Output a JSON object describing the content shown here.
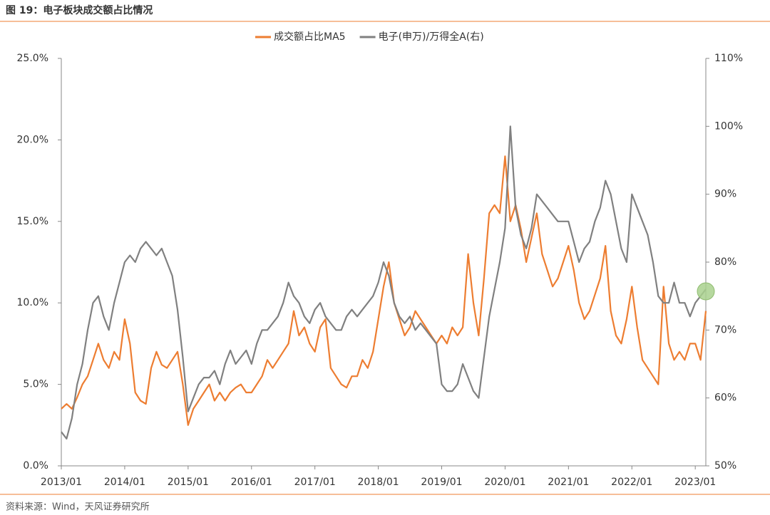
{
  "chart_data": {
    "type": "line",
    "title": "图 19：电子板块成交额占比情况",
    "source": "资料来源：Wind，天风证券研究所",
    "categories": [
      "2013/01",
      null,
      null,
      null,
      null,
      null,
      null,
      null,
      null,
      null,
      null,
      null,
      "2014/01",
      null,
      null,
      null,
      null,
      null,
      null,
      null,
      null,
      null,
      null,
      null,
      "2015/01",
      null,
      null,
      null,
      null,
      null,
      null,
      null,
      null,
      null,
      null,
      null,
      "2016/01",
      null,
      null,
      null,
      null,
      null,
      null,
      null,
      null,
      null,
      null,
      null,
      "2017/01",
      null,
      null,
      null,
      null,
      null,
      null,
      null,
      null,
      null,
      null,
      null,
      "2018/01",
      null,
      null,
      null,
      null,
      null,
      null,
      null,
      null,
      null,
      null,
      null,
      "2019/01",
      null,
      null,
      null,
      null,
      null,
      null,
      null,
      null,
      null,
      null,
      null,
      "2020/01",
      null,
      null,
      null,
      null,
      null,
      null,
      null,
      null,
      null,
      null,
      null,
      "2021/01",
      null,
      null,
      null,
      null,
      null,
      null,
      null,
      null,
      null,
      null,
      null,
      "2022/01",
      null,
      null,
      null,
      null,
      null,
      null,
      null,
      null,
      null,
      null,
      null,
      "2023/01",
      null,
      null
    ],
    "series": [
      {
        "name": "成交额占比MA5",
        "color": "#ed7d31",
        "axis": "y",
        "values": [
          3.5,
          3.8,
          3.5,
          4.2,
          5.0,
          5.5,
          6.5,
          7.5,
          6.5,
          6.0,
          7.0,
          6.5,
          9.0,
          7.5,
          4.5,
          4.0,
          3.8,
          6.0,
          7.0,
          6.2,
          6.0,
          6.5,
          7.0,
          5.0,
          2.5,
          3.5,
          4.0,
          4.5,
          5.0,
          4.0,
          4.5,
          4.0,
          4.5,
          4.8,
          5.0,
          4.5,
          4.5,
          5.0,
          5.5,
          6.5,
          6.0,
          6.5,
          7.0,
          7.5,
          9.5,
          8.0,
          8.5,
          7.5,
          7.0,
          8.5,
          9.0,
          6.0,
          5.5,
          5.0,
          4.8,
          5.5,
          5.5,
          6.5,
          6.0,
          7.0,
          9.0,
          11.0,
          12.5,
          10.0,
          9.0,
          8.0,
          8.5,
          9.5,
          9.0,
          8.5,
          8.0,
          7.5,
          8.0,
          7.5,
          8.5,
          8.0,
          8.5,
          13.0,
          10.0,
          8.0,
          11.5,
          15.5,
          16.0,
          15.5,
          19.0,
          15.0,
          16.0,
          14.5,
          12.5,
          14.0,
          15.5,
          13.0,
          12.0,
          11.0,
          11.5,
          12.5,
          13.5,
          12.0,
          10.0,
          9.0,
          9.5,
          10.5,
          11.5,
          13.5,
          9.5,
          8.0,
          7.5,
          9.0,
          11.0,
          8.5,
          6.5,
          6.0,
          5.5,
          5.0,
          11.0,
          7.5,
          6.5,
          7.0,
          6.5,
          7.5,
          7.5,
          6.5,
          9.5
        ]
      },
      {
        "name": "电子(申万)/万得全A(右)",
        "color": "#808080",
        "axis": "y2",
        "values": [
          55,
          54,
          57,
          62,
          65,
          70,
          74,
          75,
          72,
          70,
          74,
          77,
          80,
          81,
          80,
          82,
          83,
          82,
          81,
          82,
          80,
          78,
          73,
          66,
          58,
          60,
          62,
          63,
          63,
          64,
          62,
          65,
          67,
          65,
          66,
          67,
          65,
          68,
          70,
          70,
          71,
          72,
          74,
          77,
          75,
          74,
          72,
          71,
          73,
          74,
          72,
          71,
          70,
          70,
          72,
          73,
          72,
          73,
          74,
          75,
          77,
          80,
          78,
          74,
          72,
          71,
          72,
          70,
          71,
          70,
          69,
          68,
          62,
          61,
          61,
          62,
          65,
          63,
          61,
          60,
          66,
          72,
          76,
          80,
          85,
          100,
          88,
          84,
          82,
          85,
          90,
          89,
          88,
          87,
          86,
          86,
          86,
          83,
          80,
          82,
          83,
          86,
          88,
          92,
          90,
          86,
          82,
          80,
          90,
          88,
          86,
          84,
          80,
          75,
          74,
          74,
          77,
          74,
          74,
          72,
          74,
          75,
          76
        ]
      }
    ],
    "ylim": [
      0,
      25
    ],
    "yticks": [
      {
        "value": 0,
        "label": "0.0%"
      },
      {
        "value": 5,
        "label": "5.0%"
      },
      {
        "value": 10,
        "label": "10.0%"
      },
      {
        "value": 15,
        "label": "15.0%"
      },
      {
        "value": 20,
        "label": "20.0%"
      },
      {
        "value": 25,
        "label": "25.0%"
      }
    ],
    "y2lim": [
      50,
      110
    ],
    "y2ticks": [
      {
        "value": 50,
        "label": "50%"
      },
      {
        "value": 60,
        "label": "60%"
      },
      {
        "value": 70,
        "label": "70%"
      },
      {
        "value": 80,
        "label": "80%"
      },
      {
        "value": 90,
        "label": "90%"
      },
      {
        "value": 100,
        "label": "100%"
      },
      {
        "value": 110,
        "label": "110%"
      }
    ],
    "grid": false,
    "legend": "top"
  }
}
